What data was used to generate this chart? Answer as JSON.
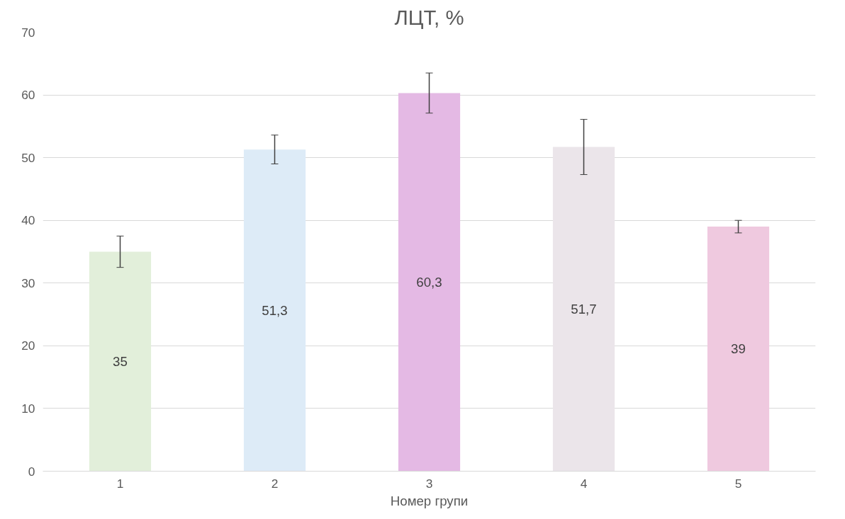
{
  "chart_data": {
    "type": "bar",
    "title": "ЛЦТ, %",
    "xlabel": "Номер групи",
    "categories": [
      "1",
      "2",
      "3",
      "4",
      "5"
    ],
    "values": [
      35,
      51.3,
      60.3,
      51.7,
      39
    ],
    "colors": [
      "#e2efda",
      "#ddebf7",
      "#e4b9e4",
      "#ebe5ea",
      "#efc9df"
    ],
    "errors": [
      2.5,
      2.3,
      3.2,
      4.4,
      1.0
    ],
    "value_labels": [
      "35",
      "51,3",
      "60,3",
      "51,7",
      "39"
    ],
    "ylim": [
      0,
      70
    ],
    "yticks": [
      0,
      10,
      20,
      30,
      40,
      50,
      60,
      70
    ],
    "grid": "y"
  }
}
